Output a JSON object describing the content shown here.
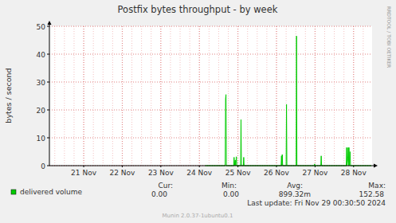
{
  "chart_data": {
    "type": "line",
    "title": "Postfix bytes throughput - by week",
    "y_label": "bytes / second",
    "x": [
      24.65,
      25.17,
      25.18,
      25.19,
      25.2,
      25.39,
      25.4,
      25.41,
      25.43,
      25.44,
      25.46,
      25.47,
      25.57,
      25.58,
      25.59,
      25.64,
      25.65,
      25.66,
      26.62,
      26.63,
      26.64,
      26.65,
      26.66,
      26.75,
      26.76,
      26.77,
      27.01,
      27.02,
      27.03,
      27.48,
      27.49,
      27.5,
      27.65,
      27.66,
      27.67,
      28.31,
      28.32,
      28.33,
      28.35,
      28.36,
      28.37,
      28.38,
      28.39,
      28.41,
      28.42,
      28.96
    ],
    "series": [
      {
        "name": "delivered volume",
        "color": "#00cc00",
        "values": [
          0,
          0,
          24,
          25.5,
          0,
          0,
          3,
          0,
          2,
          0,
          3.2,
          0,
          0,
          16.5,
          0,
          0,
          3,
          0,
          0,
          3.5,
          0,
          4,
          0,
          0,
          22,
          0,
          0,
          46.5,
          0,
          0,
          0.6,
          0,
          0,
          3.5,
          0,
          0,
          6.5,
          0,
          2.5,
          6.5,
          0,
          6.5,
          0,
          5,
          0,
          0
        ]
      }
    ],
    "xlim": [
      20.61,
      28.98
    ],
    "xticks": [
      {
        "value": 21.5,
        "label": "21 Nov"
      },
      {
        "value": 22.5,
        "label": "22 Nov"
      },
      {
        "value": 23.5,
        "label": "23 Nov"
      },
      {
        "value": 24.5,
        "label": "24 Nov"
      },
      {
        "value": 25.5,
        "label": "25 Nov"
      },
      {
        "value": 26.5,
        "label": "26 Nov"
      },
      {
        "value": 27.5,
        "label": "27 Nov"
      },
      {
        "value": 28.5,
        "label": "28 Nov"
      }
    ],
    "ylim": [
      0,
      50
    ],
    "yticks": [
      0,
      10,
      20,
      30,
      40,
      50
    ],
    "grid": true,
    "stats": {
      "headers": [
        "Cur:",
        "Min:",
        "Avg:",
        "Max:"
      ],
      "values": [
        "0.00",
        "0.00",
        "899.32m",
        "152.58"
      ]
    },
    "last_update": "Last update: Fri Nov 29 00:30:50 2024",
    "watermark": "RRDTOOL / TOBI OETIKER",
    "footer": "Munin 2.0.37-1ubuntu0.1"
  }
}
